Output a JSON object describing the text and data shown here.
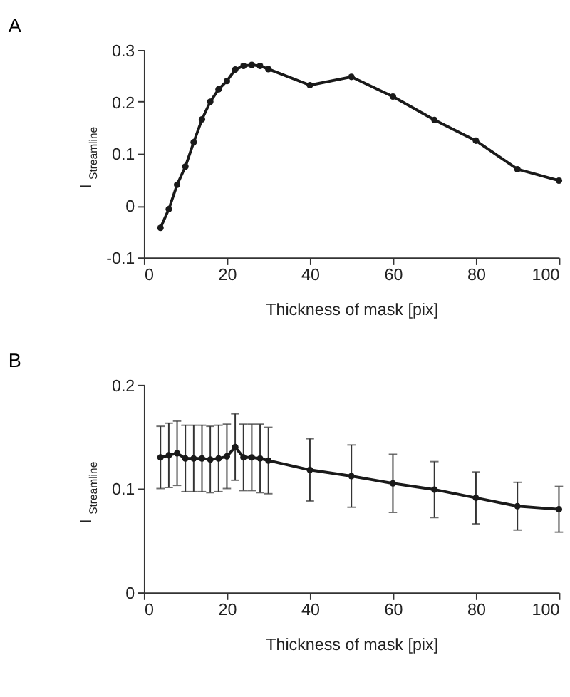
{
  "chart_data": [
    {
      "type": "line",
      "title": "A",
      "xlabel": "Thickness of mask [pix]",
      "ylabel": "I$_{Streamline}$",
      "x": [
        4,
        6,
        8,
        10,
        12,
        14,
        16,
        18,
        20,
        22,
        24,
        26,
        28,
        30,
        40,
        50,
        60,
        70,
        80,
        90,
        100
      ],
      "series": [
        {
          "color": "#1a1a1a",
          "values": [
            -0.043,
            -0.007,
            0.04,
            0.075,
            0.122,
            0.166,
            0.2,
            0.224,
            0.24,
            0.262,
            0.269,
            0.271,
            0.269,
            0.263,
            0.232,
            0.248,
            0.21,
            0.165,
            0.125,
            0.07,
            0.048
          ]
        }
      ],
      "xlim": [
        0,
        100
      ],
      "xticks": [
        0,
        20,
        40,
        60,
        80,
        100
      ],
      "ylim": [
        -0.1,
        0.3
      ],
      "yticks": [
        -0.1,
        0,
        0.1,
        0.2,
        0.3
      ],
      "grid": false,
      "marker": "circle",
      "line_style": "solid"
    },
    {
      "type": "line",
      "title": "B",
      "xlabel": "Thickness of mask [pix]",
      "ylabel": "I$_{Streamline}$",
      "x": [
        4,
        6,
        8,
        10,
        12,
        14,
        16,
        18,
        20,
        22,
        24,
        26,
        28,
        30,
        40,
        50,
        60,
        70,
        80,
        90,
        100
      ],
      "series": [
        {
          "color": "#1a1a1a",
          "values": [
            0.13,
            0.132,
            0.134,
            0.129,
            0.129,
            0.129,
            0.128,
            0.129,
            0.131,
            0.14,
            0.13,
            0.13,
            0.129,
            0.127,
            0.118,
            0.112,
            0.105,
            0.099,
            0.091,
            0.083,
            0.08
          ],
          "errors": [
            0.03,
            0.031,
            0.031,
            0.032,
            0.032,
            0.032,
            0.032,
            0.032,
            0.031,
            0.032,
            0.032,
            0.032,
            0.033,
            0.032,
            0.03,
            0.03,
            0.028,
            0.027,
            0.025,
            0.023,
            0.022
          ]
        }
      ],
      "xlim": [
        0,
        100
      ],
      "xticks": [
        0,
        20,
        40,
        60,
        80,
        100
      ],
      "ylim": [
        0,
        0.2
      ],
      "yticks": [
        0,
        0.1,
        0.2
      ],
      "grid": false,
      "marker": "circle",
      "line_style": "solid"
    }
  ]
}
